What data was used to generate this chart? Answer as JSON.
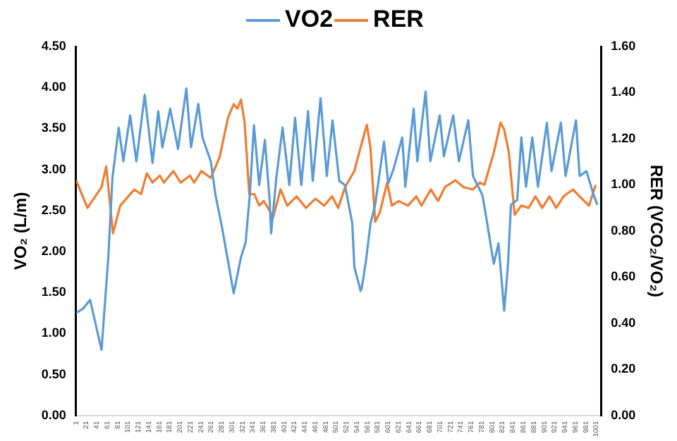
{
  "chart_data": {
    "type": "line",
    "ylabel": "VO₂ (L/m)",
    "y2label": "RER (VCO₂/VO₂)",
    "legend": "top",
    "grid": false,
    "xlim": [
      1,
      1010
    ],
    "xticks": [
      1,
      21,
      41,
      61,
      81,
      101,
      121,
      141,
      161,
      181,
      201,
      221,
      241,
      261,
      281,
      301,
      321,
      341,
      361,
      381,
      401,
      421,
      441,
      461,
      481,
      501,
      521,
      541,
      561,
      581,
      601,
      621,
      641,
      661,
      681,
      701,
      721,
      741,
      761,
      781,
      801,
      821,
      841,
      861,
      881,
      901,
      921,
      941,
      961,
      981,
      1001
    ],
    "ylim": [
      0,
      4.5
    ],
    "yticks": [
      {
        "value": 0,
        "label": "0.00"
      },
      {
        "value": 0.5,
        "label": "0.50"
      },
      {
        "value": 1,
        "label": "1.00"
      },
      {
        "value": 1.5,
        "label": "1.50"
      },
      {
        "value": 2,
        "label": "2.00"
      },
      {
        "value": 2.5,
        "label": "2.50"
      },
      {
        "value": 3,
        "label": "3.00"
      },
      {
        "value": 3.5,
        "label": "3.50"
      },
      {
        "value": 4,
        "label": "4.00"
      },
      {
        "value": 4.5,
        "label": "4.50"
      }
    ],
    "y2lim": [
      0,
      1.6
    ],
    "y2ticks": [
      {
        "value": 0,
        "label": "0.00"
      },
      {
        "value": 0.2,
        "label": "0.20"
      },
      {
        "value": 0.4,
        "label": "0.40"
      },
      {
        "value": 0.6,
        "label": "0.60"
      },
      {
        "value": 0.8,
        "label": "0.80"
      },
      {
        "value": 1,
        "label": "1.00"
      },
      {
        "value": 1.2,
        "label": "1.20"
      },
      {
        "value": 1.4,
        "label": "1.40"
      },
      {
        "value": 1.6,
        "label": "1.60"
      }
    ],
    "series": [
      {
        "name": "VO2",
        "color": "#5b9bd5",
        "x": [
          1,
          14,
          28,
          41,
          50,
          63,
          71,
          83,
          92,
          105,
          117,
          133,
          148,
          159,
          167,
          182,
          197,
          213,
          222,
          236,
          244,
          260,
          269,
          282,
          304,
          318,
          327,
          335,
          343,
          353,
          364,
          373,
          376,
          386,
          398,
          411,
          422,
          434,
          447,
          456,
          471,
          483,
          494,
          507,
          518,
          532,
          536,
          548,
          550,
          558,
          567,
          576,
          593,
          601,
          611,
          628,
          634,
          650,
          657,
          673,
          682,
          700,
          708,
          726,
          737,
          755,
          764,
          782,
          790,
          799,
          804,
          813,
          824,
          831,
          837,
          849,
          857,
          866,
          878,
          889,
          906,
          915,
          933,
          942,
          962,
          969,
          982,
          996,
          1003
        ],
        "values": [
          1.25,
          1.3,
          1.41,
          1.05,
          0.8,
          1.93,
          2.9,
          3.51,
          3.1,
          3.66,
          3.1,
          3.91,
          3.08,
          3.71,
          3.27,
          3.74,
          3.25,
          3.99,
          3.27,
          3.8,
          3.39,
          3.1,
          2.69,
          2.28,
          1.49,
          1.93,
          2.11,
          2.69,
          3.54,
          2.81,
          3.36,
          2.64,
          2.22,
          2.9,
          3.51,
          2.81,
          3.63,
          2.81,
          3.71,
          2.86,
          3.87,
          2.92,
          3.6,
          2.86,
          2.81,
          2.34,
          1.81,
          1.52,
          1.55,
          1.87,
          2.34,
          2.57,
          3.34,
          2.83,
          3.0,
          3.39,
          2.79,
          3.74,
          3.1,
          3.95,
          3.1,
          3.66,
          3.16,
          3.66,
          3.1,
          3.6,
          2.92,
          2.69,
          2.4,
          2.04,
          1.85,
          2.1,
          1.28,
          1.81,
          2.57,
          2.63,
          3.39,
          2.79,
          3.39,
          2.79,
          3.57,
          2.98,
          3.57,
          2.92,
          3.6,
          2.92,
          2.98,
          2.69,
          2.57
        ]
      },
      {
        "name": "RER",
        "color": "#ed7d31",
        "axis": "y2",
        "x": [
          1,
          23,
          50,
          59,
          72,
          86,
          113,
          126,
          137,
          148,
          162,
          170,
          188,
          202,
          220,
          228,
          242,
          260,
          277,
          293,
          304,
          311,
          318,
          325,
          334,
          344,
          353,
          362,
          380,
          394,
          407,
          425,
          443,
          461,
          478,
          493,
          505,
          518,
          536,
          550,
          560,
          567,
          576,
          585,
          599,
          608,
          621,
          639,
          655,
          665,
          683,
          697,
          710,
          730,
          746,
          764,
          777,
          786,
          804,
          817,
          824,
          833,
          844,
          857,
          871,
          884,
          897,
          911,
          924,
          938,
          956,
          969,
          987,
          1000
        ],
        "values": [
          1.02,
          0.9,
          0.99,
          1.08,
          0.79,
          0.91,
          0.98,
          0.96,
          1.05,
          1.01,
          1.04,
          1.01,
          1.06,
          1.01,
          1.04,
          1.01,
          1.06,
          1.03,
          1.12,
          1.29,
          1.35,
          1.33,
          1.37,
          1.27,
          0.96,
          0.96,
          0.91,
          0.93,
          0.86,
          0.98,
          0.91,
          0.95,
          0.9,
          0.94,
          0.91,
          0.95,
          0.9,
          0.99,
          1.06,
          1.18,
          1.26,
          1.16,
          0.84,
          0.88,
          1.01,
          0.91,
          0.93,
          0.91,
          0.95,
          0.91,
          0.98,
          0.93,
          0.99,
          1.02,
          0.99,
          0.98,
          1.01,
          1.0,
          1.14,
          1.27,
          1.24,
          1.14,
          0.87,
          0.91,
          0.9,
          0.95,
          0.9,
          0.95,
          0.9,
          0.95,
          0.98,
          0.95,
          0.91,
          1.0
        ]
      }
    ]
  }
}
